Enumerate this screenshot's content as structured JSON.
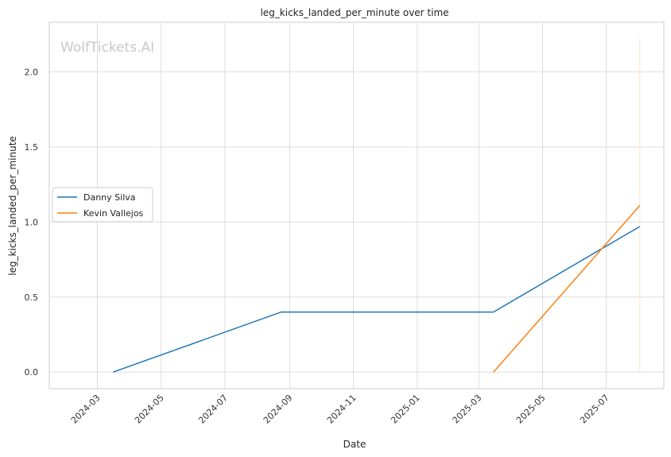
{
  "chart_data": {
    "type": "line",
    "title": "leg_kicks_landed_per_minute over time",
    "xlabel": "Date",
    "ylabel": "leg_kicks_landed_per_minute",
    "watermark": "WolfTickets.AI",
    "x_axis": {
      "type": "date",
      "ticks": [
        "2024-03-01",
        "2024-05-01",
        "2024-07-01",
        "2024-09-01",
        "2024-11-01",
        "2025-01-01",
        "2025-03-01",
        "2025-05-01",
        "2025-07-01"
      ],
      "tick_labels": [
        "2024-03",
        "2024-05",
        "2024-07",
        "2024-09",
        "2024-11",
        "2025-01",
        "2025-03",
        "2025-05",
        "2025-07"
      ],
      "range": [
        "2024-01-15",
        "2025-08-25"
      ]
    },
    "y_axis": {
      "ticks": [
        0.0,
        0.5,
        1.0,
        1.5,
        2.0
      ],
      "tick_labels": [
        "0.0",
        "0.5",
        "1.0",
        "1.5",
        "2.0"
      ],
      "range": [
        -0.11,
        2.33
      ]
    },
    "grid": true,
    "legend_position": "center-left",
    "series": [
      {
        "name": "Danny Silva",
        "color": "#1f77b4",
        "points": [
          {
            "x": "2024-03-16",
            "y": 0.0
          },
          {
            "x": "2024-08-24",
            "y": 0.4
          },
          {
            "x": "2025-03-15",
            "y": 0.4
          },
          {
            "x": "2025-08-02",
            "y": 0.97
          }
        ]
      },
      {
        "name": "Kevin Vallejos",
        "color": "#ff7f0e",
        "points": [
          {
            "x": "2025-03-15",
            "y": 0.0
          },
          {
            "x": "2025-08-02",
            "y": 1.11
          }
        ]
      }
    ],
    "annotations": [
      {
        "type": "vertical-line",
        "x": "2025-08-02",
        "y_from": 0.0,
        "y_to": 2.22,
        "color": "#fde3cc"
      }
    ]
  }
}
